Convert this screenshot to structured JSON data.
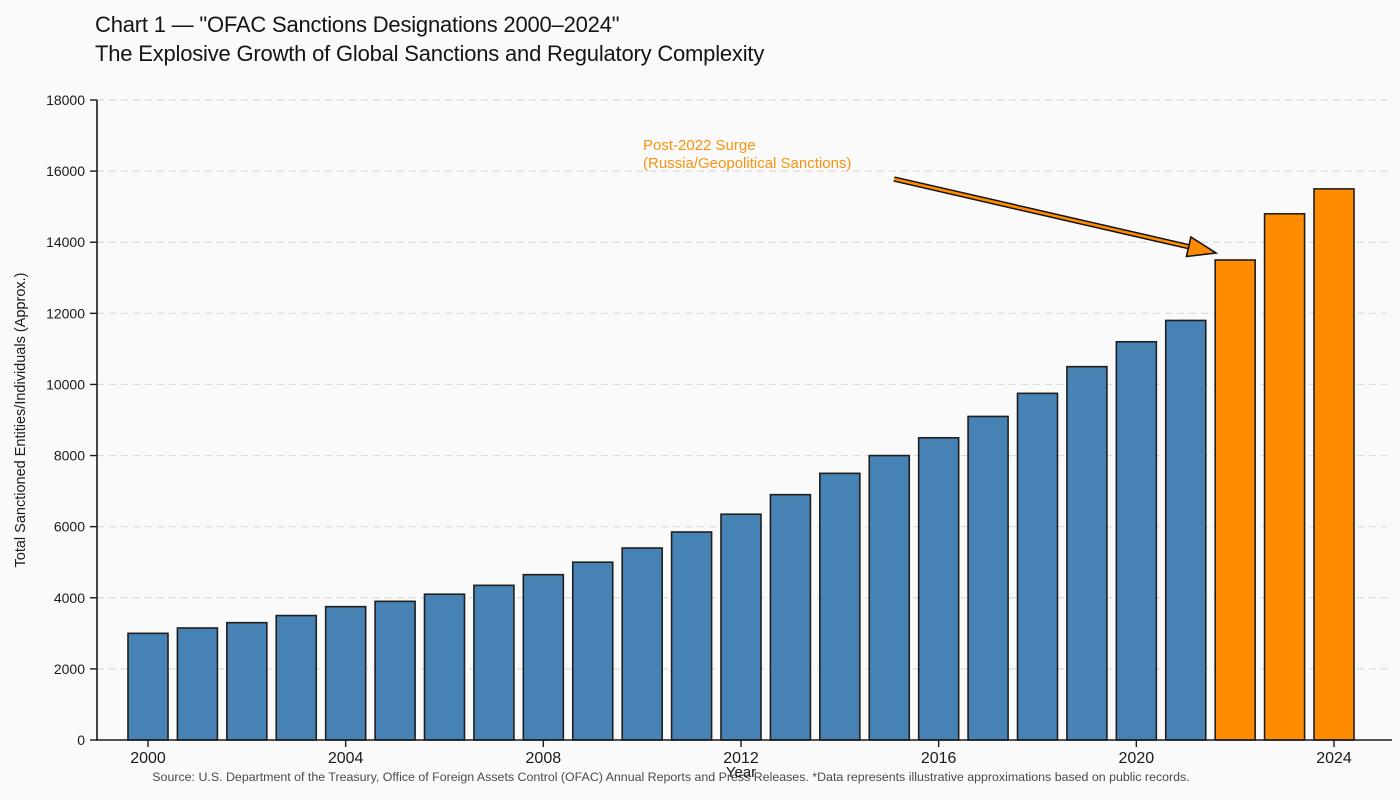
{
  "header": {
    "title": "Chart 1 — \"OFAC Sanctions Designations 2000–2024\"",
    "subtitle": "The Explosive Growth of Global Sanctions and Regulatory Complexity"
  },
  "footer": {
    "source": "Source: U.S. Department of the Treasury, Office of Foreign Assets Control (OFAC) Annual Reports and Press Releases. *Data represents illustrative approximations based on public records."
  },
  "chart_data": {
    "type": "bar",
    "title": "Chart 1 — \"OFAC Sanctions Designations 2000–2024\"",
    "subtitle": "The Explosive Growth of Global Sanctions and Regulatory Complexity",
    "xlabel": "Year",
    "ylabel": "Total Sanctioned Entities/Individuals (Approx.)",
    "categories": [
      2000,
      2001,
      2002,
      2003,
      2004,
      2005,
      2006,
      2007,
      2008,
      2009,
      2010,
      2011,
      2012,
      2013,
      2014,
      2015,
      2016,
      2017,
      2018,
      2019,
      2020,
      2021,
      2022,
      2023,
      2024
    ],
    "values": [
      3000,
      3150,
      3300,
      3500,
      3750,
      3900,
      4100,
      4350,
      4650,
      5000,
      5400,
      5850,
      6350,
      6900,
      7500,
      8000,
      8500,
      9100,
      9750,
      10500,
      11200,
      11800,
      13500,
      14800,
      15500
    ],
    "highlight_from_year": 2022,
    "highlight_years": [
      2022,
      2023,
      2024
    ],
    "ylim": [
      0,
      18000
    ],
    "ytick_step": 2000,
    "xticks": [
      2000,
      2004,
      2008,
      2012,
      2016,
      2020,
      2024
    ],
    "grid": "horizontal-dashed",
    "legend": "none",
    "annotation": {
      "line1": "Post-2022 Surge",
      "line2": "(Russia/Geopolitical Sanctions)",
      "target_year": 2022
    },
    "colors": {
      "bar_default": "#4682B4",
      "bar_highlight": "#FF8C00",
      "bar_edge": "#1F1F1F",
      "grid": "#DBDBDB",
      "axis": "#1A1A1A",
      "annotation_text": "#F7930F",
      "arrow_outline": "#111111",
      "background": "#FAFAFA",
      "text": "#1A1A1A",
      "source_text": "#4A4A4A"
    }
  }
}
